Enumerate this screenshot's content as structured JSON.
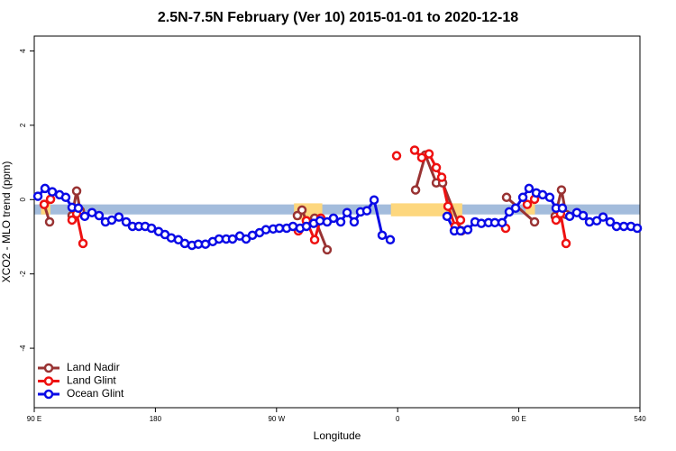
{
  "chart_data": {
    "type": "line",
    "title": "2.5N-7.5N February (Ver 10)   2015-01-01 to 2020-12-18",
    "x_label": "Longitude",
    "y_label": "XCO2 - MLO trend (ppm)",
    "xlim": [
      90,
      540
    ],
    "xticks": [
      {
        "value": 90,
        "label": "90 E"
      },
      180,
      {
        "value": 270,
        "label": "90 W"
      },
      {
        "value": 360,
        "label": "0"
      },
      {
        "value": 450,
        "label": "90 E"
      },
      540
    ],
    "ylim": [
      -5.6,
      4.4
    ],
    "yticks": [
      -4,
      -2,
      0,
      2,
      4
    ],
    "legend": "bottom-left",
    "reference_band": {
      "color": "#a3bcdc",
      "y": [
        -0.4,
        -0.13
      ]
    },
    "shaded_regions": {
      "color": "#fdd77e",
      "regions": [
        {
          "x": [
            95,
            102
          ],
          "y": [
            -0.4,
            -0.1
          ]
        },
        {
          "x": [
            283,
            304
          ],
          "y": [
            -0.55,
            -0.1
          ]
        },
        {
          "x": [
            355,
            408
          ],
          "y": [
            -0.45,
            -0.1
          ]
        },
        {
          "x": [
            455,
            462
          ],
          "y": [
            -0.4,
            -0.1
          ]
        }
      ]
    },
    "series": [
      {
        "name": "Land Nadir",
        "color": "#993333",
        "x": [
          97.4,
          101.4,
          110,
          118.1,
          121.5,
          124.2,
          270,
          285.5,
          288.9,
          292.2,
          298.3,
          307.6,
          340,
          373.3,
          380.6,
          388.7,
          393.4,
          407.4,
          420,
          440.9,
          461.7,
          470,
          477,
          481.7,
          485.1
        ],
        "values": [
          -0.13,
          -0.6,
          null,
          -0.43,
          0.23,
          -0.3,
          null,
          -0.43,
          -0.28,
          -0.57,
          -0.5,
          -1.35,
          null,
          0.26,
          1.2,
          0.45,
          0.45,
          -0.84,
          null,
          0.06,
          -0.6,
          null,
          -0.45,
          0.26,
          -0.4
        ]
      },
      {
        "name": "Land Glint",
        "color": "#ee1111",
        "x": [
          97.4,
          102.1,
          110,
          118.1,
          121.5,
          126.2,
          270,
          286.2,
          292.2,
          298.3,
          302.9,
          330,
          359.2,
          365,
          372.6,
          377.9,
          383.3,
          388.7,
          392.7,
          397.4,
          402.7,
          406.7,
          420,
          440.2,
          450,
          456.3,
          461.7,
          470,
          477.7,
          481,
          485.1
        ],
        "values": [
          -0.13,
          0.01,
          null,
          -0.55,
          -0.38,
          -1.18,
          null,
          -0.84,
          -0.57,
          -1.08,
          -0.5,
          null,
          1.18,
          null,
          1.33,
          1.13,
          1.23,
          0.86,
          0.6,
          -0.18,
          -0.72,
          -0.55,
          null,
          -0.77,
          null,
          -0.13,
          0.01,
          null,
          -0.55,
          -0.38,
          -1.18
        ]
      },
      {
        "name": "Ocean Glint",
        "color": "#0a0ae6",
        "x": [
          92.7,
          98,
          103.4,
          108.8,
          113.4,
          118.1,
          122.8,
          127.5,
          132.9,
          138.2,
          142.9,
          147.6,
          152.9,
          158.3,
          163,
          167.7,
          172.4,
          177.1,
          182.4,
          187.1,
          191.8,
          197.1,
          201.8,
          207.2,
          211.9,
          217.2,
          222.6,
          227.3,
          232.6,
          237.3,
          242.7,
          247.4,
          252.1,
          257.4,
          262.1,
          267.5,
          272.1,
          277.5,
          282.2,
          287.5,
          292.2,
          297.6,
          302.3,
          307.6,
          312.3,
          317.7,
          322.4,
          327.7,
          332.4,
          337.1,
          342.5,
          348.5,
          354.5,
          375,
          396.7,
          402.1,
          406.7,
          412.1,
          417.5,
          422.2,
          427.5,
          432.2,
          437.6,
          442.9,
          447.6,
          453,
          457.6,
          463,
          467.7,
          473,
          477.7,
          482.4,
          487.8,
          493.1,
          497.8,
          502.5,
          507.9,
          512.6,
          517.9,
          522.6,
          528,
          533.3,
          538
        ],
        "values": [
          0.09,
          0.3,
          0.21,
          0.13,
          0.06,
          -0.21,
          -0.23,
          -0.45,
          -0.35,
          -0.43,
          -0.6,
          -0.55,
          -0.47,
          -0.6,
          -0.72,
          -0.72,
          -0.72,
          -0.77,
          -0.86,
          -0.94,
          -1.03,
          -1.08,
          -1.18,
          -1.23,
          -1.2,
          -1.2,
          -1.13,
          -1.06,
          -1.06,
          -1.06,
          -0.98,
          -1.06,
          -0.96,
          -0.89,
          -0.81,
          -0.79,
          -0.77,
          -0.77,
          -0.72,
          -0.77,
          -0.72,
          -0.64,
          -0.57,
          -0.6,
          -0.5,
          -0.6,
          -0.35,
          -0.6,
          -0.33,
          -0.3,
          -0.01,
          -0.96,
          -1.08,
          null,
          -0.45,
          -0.84,
          -0.84,
          -0.81,
          -0.6,
          -0.64,
          -0.62,
          -0.62,
          -0.62,
          -0.33,
          -0.23,
          0.06,
          0.3,
          0.18,
          0.13,
          0.06,
          -0.23,
          -0.23,
          -0.45,
          -0.35,
          -0.43,
          -0.6,
          -0.57,
          -0.47,
          -0.6,
          -0.72,
          -0.72,
          -0.72,
          -0.77
        ]
      }
    ]
  }
}
